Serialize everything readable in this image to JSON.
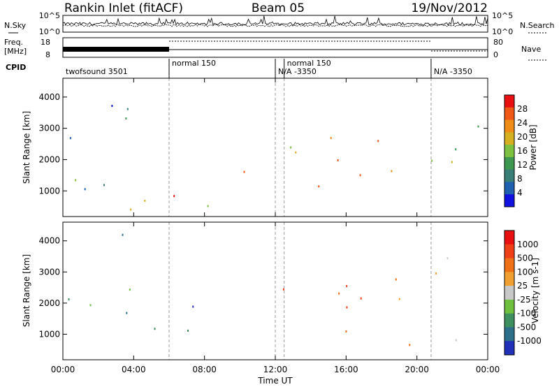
{
  "header": {
    "title": "Rankin Inlet (fitACF)",
    "beam": "Beam 05",
    "date": "19/Nov/2012"
  },
  "noise_panel": {
    "left_label": "N.Sky",
    "right_label": "N.Search",
    "left_ticks": [
      "10^5",
      "10^0"
    ],
    "right_ticks": [
      "10^5",
      "10^0"
    ]
  },
  "freq_panel": {
    "left_label_1": "Freq.",
    "left_label_2": "[MHz]",
    "right_label": "Nave",
    "left_ticks": [
      "18",
      "8"
    ],
    "right_ticks": [
      "80",
      "0"
    ]
  },
  "cpid": {
    "label": "CPID",
    "segments": [
      {
        "name": "twofsound 3501",
        "start": 0,
        "end": 6
      },
      {
        "name": "normal 150",
        "start": 6,
        "end": 12
      },
      {
        "name": "N/A -3350",
        "start": 12,
        "end": 12.5
      },
      {
        "name": "normal 150",
        "start": 12.5,
        "end": 20.8
      },
      {
        "name": "N/A -3350",
        "start": 20.8,
        "end": 24
      }
    ]
  },
  "chart_data": [
    {
      "type": "heatmap",
      "panel": "power",
      "ylabel": "Slant Range [km]",
      "xlabel": "Time UT",
      "xlim": [
        0,
        24
      ],
      "ylim": [
        180,
        4600
      ],
      "x_tick_labels": [
        "00:00",
        "04:00",
        "08:00",
        "12:00",
        "16:00",
        "20:00",
        "00:00"
      ],
      "y_ticks": [
        1000,
        2000,
        3000,
        4000
      ],
      "y_tick_labels": [
        "1000",
        "2000",
        "3000",
        "4000"
      ],
      "colorbar": {
        "label": "Power [dB]",
        "range": [
          0,
          32
        ],
        "tick_values": [
          4,
          8,
          12,
          16,
          20,
          24,
          28
        ],
        "tick_labels": [
          "4",
          "8",
          "12",
          "16",
          "20",
          "24",
          "28"
        ],
        "colors": [
          "#1010e0",
          "#2060b0",
          "#3a7e78",
          "#3e9850",
          "#7ec040",
          "#d6b020",
          "#f08c18",
          "#f05818",
          "#e81010"
        ]
      },
      "scatter_regions": [
        {
          "t0": 0.1,
          "t1": 6.0,
          "r0": 300,
          "r1": 2300,
          "db": 14
        },
        {
          "t0": 0.2,
          "t1": 5.5,
          "r0": 2300,
          "r1": 4300,
          "db": 9
        },
        {
          "t0": 6.0,
          "t1": 10.6,
          "r0": 500,
          "r1": 2300,
          "db": 24
        },
        {
          "t0": 12.0,
          "t1": 13.5,
          "r0": 1600,
          "r1": 2500,
          "db": 17
        },
        {
          "t0": 12.5,
          "t1": 20.5,
          "r0": 600,
          "r1": 2400,
          "db": 25
        },
        {
          "t0": 13.2,
          "t1": 19.0,
          "r0": 2100,
          "r1": 3300,
          "db": 21
        },
        {
          "t0": 20.8,
          "t1": 23.9,
          "r0": 600,
          "r1": 2100,
          "db": 24
        },
        {
          "t0": 20.8,
          "t1": 23.9,
          "r0": 2200,
          "r1": 3600,
          "db": 7
        }
      ]
    },
    {
      "type": "heatmap",
      "panel": "velocity",
      "ylabel": "Slant Range [km]",
      "xlabel": "Time UT",
      "xlim": [
        0,
        24
      ],
      "ylim": [
        180,
        4600
      ],
      "x_tick_labels": [
        "00:00",
        "04:00",
        "08:00",
        "12:00",
        "16:00",
        "20:00",
        "00:00"
      ],
      "y_ticks": [
        1000,
        2000,
        3000,
        4000
      ],
      "y_tick_labels": [
        "1000",
        "2000",
        "3000",
        "4000"
      ],
      "colorbar": {
        "label": "Velocity [m s-1]",
        "tick_labels": [
          "1000",
          "500",
          "100",
          "25",
          "-25",
          "-100",
          "-500",
          "-1000"
        ],
        "colors": [
          "#2030b8",
          "#2e6f8a",
          "#3e9060",
          "#70c040",
          "#c8c8c8",
          "#f0a030",
          "#f07018",
          "#f04018",
          "#e81010"
        ]
      },
      "scatter_regions": [
        {
          "t0": 0.1,
          "t1": 6.0,
          "r0": 300,
          "r1": 2300,
          "cls": 2
        },
        {
          "t0": 0.2,
          "t1": 5.5,
          "r0": 2300,
          "r1": 4300,
          "cls": 2
        },
        {
          "t0": 6.0,
          "t1": 10.6,
          "r0": 500,
          "r1": 2300,
          "cls": 1
        },
        {
          "t0": 12.0,
          "t1": 13.5,
          "r0": 1600,
          "r1": 2500,
          "cls": 6
        },
        {
          "t0": 12.5,
          "t1": 20.5,
          "r0": 600,
          "r1": 2400,
          "cls": 6
        },
        {
          "t0": 13.2,
          "t1": 19.0,
          "r0": 2100,
          "r1": 3300,
          "cls": 6
        },
        {
          "t0": 20.8,
          "t1": 23.9,
          "r0": 600,
          "r1": 2100,
          "cls": 3
        },
        {
          "t0": 20.8,
          "t1": 23.9,
          "r0": 2200,
          "r1": 3600,
          "cls": 4
        }
      ]
    }
  ]
}
